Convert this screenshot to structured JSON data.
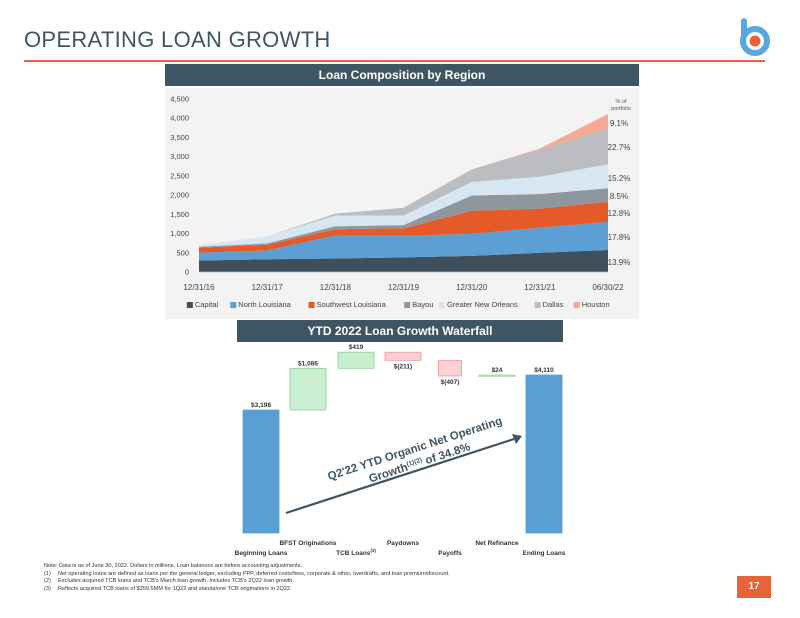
{
  "page": {
    "title": "OPERATING LOAN GROWTH",
    "page_number": "17",
    "brand_color": "#e8623a",
    "logo_letter": "b"
  },
  "area_chart": {
    "panel_title": "Loan Composition by Region",
    "pct_header_line1": "% of",
    "pct_header_line2": "portfolio",
    "pct_labels": [
      "9.1%",
      "22.7%",
      "15.2%",
      "8.5%",
      "12.8%",
      "17.8%",
      "13.9%"
    ]
  },
  "waterfall_chart": {
    "panel_title": "YTD 2022 Loan Growth Waterfall",
    "annotation_line1": "Q2'22 YTD Organic Net Operating",
    "annotation_line2_main": "Growth",
    "annotation_line2_sup": "(1)(2)",
    "annotation_line2_end": " of 34.8%",
    "bar_value_labels": [
      "$3,198",
      "$1,086",
      "$419",
      "$(211)",
      "$(407)",
      "$24",
      "$4,110"
    ],
    "category_labels_lower": [
      "Beginning Loans",
      "TCB Loans",
      "Payoffs",
      "Ending Loans"
    ],
    "category_labels_upper": [
      "BFST Originations",
      "Paydowns",
      "Net Refinance"
    ],
    "tcb_sup": "(3)"
  },
  "chart_data": [
    {
      "type": "area",
      "title": "Loan Composition by Region",
      "stacked": true,
      "x": [
        "12/31/16",
        "12/31/17",
        "12/31/18",
        "12/31/19",
        "12/31/20",
        "12/31/21",
        "06/30/22"
      ],
      "xlabel": "",
      "ylabel": "",
      "ylim": [
        0,
        4500
      ],
      "yticks": [
        "0",
        "500",
        "1,000",
        "1,500",
        "2,000",
        "2,500",
        "3,000",
        "3,500",
        "4,000",
        "4,500"
      ],
      "legend_position": "bottom",
      "series": [
        {
          "name": "Capital",
          "color": "#3f4f5c",
          "values": [
            300,
            330,
            350,
            380,
            420,
            500,
            571
          ]
        },
        {
          "name": "North Louisiana",
          "color": "#5b9fd4",
          "values": [
            200,
            230,
            600,
            560,
            570,
            650,
            732
          ]
        },
        {
          "name": "Southwest Louisiana",
          "color": "#e55a29",
          "values": [
            130,
            150,
            160,
            200,
            600,
            500,
            526
          ]
        },
        {
          "name": "Bayou",
          "color": "#8e979e",
          "values": [
            25,
            35,
            80,
            80,
            400,
            380,
            349
          ]
        },
        {
          "name": "Greater New Orleans",
          "color": "#d6e6f2",
          "values": [
            35,
            180,
            280,
            250,
            350,
            450,
            625
          ]
        },
        {
          "name": "Dallas",
          "color": "#bcbdc0",
          "values": [
            0,
            0,
            50,
            200,
            330,
            700,
            933
          ]
        },
        {
          "name": "Houston",
          "color": "#f5a993",
          "values": [
            0,
            0,
            0,
            0,
            0,
            30,
            374
          ]
        }
      ]
    },
    {
      "type": "bar",
      "subtype": "waterfall",
      "title": "YTD 2022 Loan Growth Waterfall",
      "categories": [
        "Beginning Loans",
        "BFST Originations",
        "TCB Loans",
        "Paydowns",
        "Payoffs",
        "Net Refinance",
        "Ending Loans"
      ],
      "values": [
        3198,
        1086,
        419,
        -211,
        -407,
        24,
        4110
      ],
      "kinds": [
        "total",
        "delta",
        "delta",
        "delta",
        "delta",
        "delta",
        "total"
      ]
    }
  ]
}
